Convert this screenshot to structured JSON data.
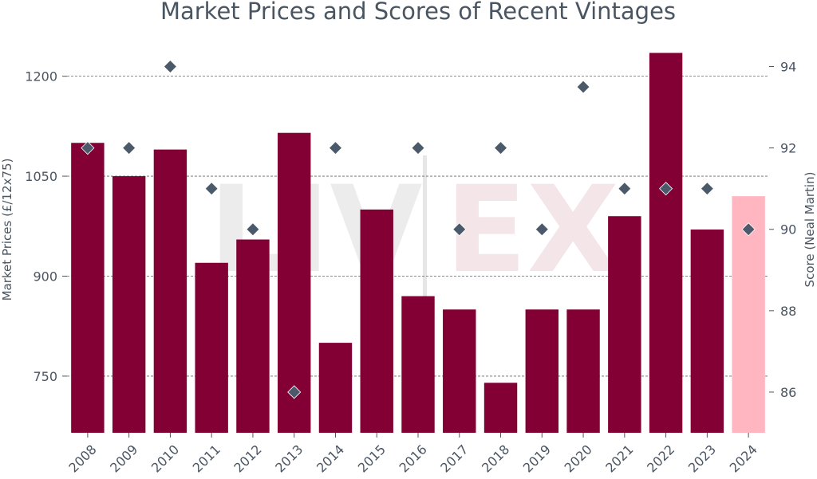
{
  "chart_data": {
    "type": "bar",
    "title": "Market Prices and Scores of Recent Vintages",
    "ylabel": "Market Prices (£/12x75)",
    "y2label": "Score (Neal Martin)",
    "categories": [
      "2008",
      "2009",
      "2010",
      "2011",
      "2012",
      "2013",
      "2014",
      "2015",
      "2016",
      "2017",
      "2018",
      "2019",
      "2020",
      "2021",
      "2022",
      "2023",
      "2024"
    ],
    "ylim": [
      665,
      1245
    ],
    "y_ticks": [
      750,
      900,
      1050,
      1200
    ],
    "y2lim": [
      85,
      94.5
    ],
    "y2_ticks": [
      86,
      88,
      90,
      92,
      94
    ],
    "grid": "horizontal dashed",
    "series": [
      {
        "kind": "bar",
        "axis": "left",
        "values": [
          1100,
          1050,
          1090,
          920,
          955,
          1115,
          800,
          1000,
          870,
          850,
          740,
          850,
          850,
          990,
          1235,
          970,
          1020
        ],
        "colors": [
          "#820033",
          "#820033",
          "#820033",
          "#820033",
          "#820033",
          "#820033",
          "#820033",
          "#820033",
          "#820033",
          "#820033",
          "#820033",
          "#820033",
          "#820033",
          "#820033",
          "#820033",
          "#820033",
          "#ffb6c1"
        ]
      },
      {
        "kind": "scatter",
        "marker": "diamond",
        "axis": "right",
        "values": [
          92,
          92,
          94,
          91,
          90,
          86,
          92,
          null,
          92,
          90,
          92,
          90,
          93.5,
          91,
          91,
          91,
          90
        ],
        "color": "#4a5a6a"
      }
    ],
    "watermark": "LIV-EX"
  }
}
